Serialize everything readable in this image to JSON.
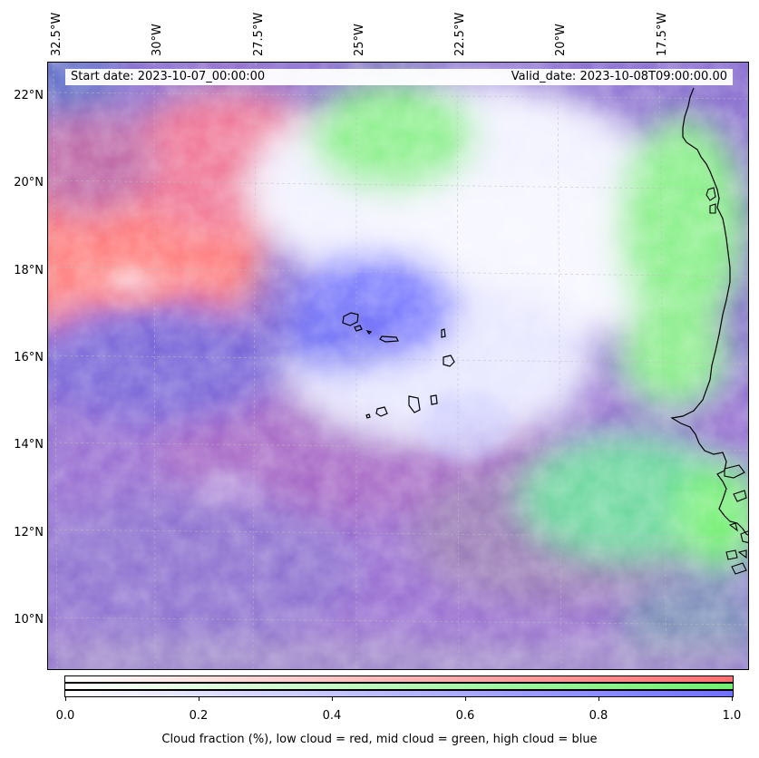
{
  "map": {
    "start_date": "Start date: 2023-10-07_00:00:00",
    "valid_date": "Valid_date: 2023-10-08T09:00:00.00",
    "longitude_labels": [
      "32.5°W",
      "30°W",
      "27.5°W",
      "25°W",
      "22.5°W",
      "20°W",
      "17.5°W"
    ],
    "latitude_labels": [
      "22°N",
      "20°N",
      "18°N",
      "16°N",
      "14°N",
      "12°N",
      "10°N"
    ],
    "region": "Cape Verde / West Africa coast",
    "features": [
      "coastline",
      "cape-verde-islands",
      "graticule",
      "cloud-fraction-field"
    ]
  },
  "colorbar": {
    "ticks": [
      "0.0",
      "0.2",
      "0.4",
      "0.6",
      "0.8",
      "1.0"
    ],
    "caption": "Cloud fraction (%), low cloud = red, mid cloud = green, high cloud = blue",
    "colors": {
      "low": "#ff7070",
      "mid": "#70f070",
      "high": "#7070ff"
    }
  }
}
